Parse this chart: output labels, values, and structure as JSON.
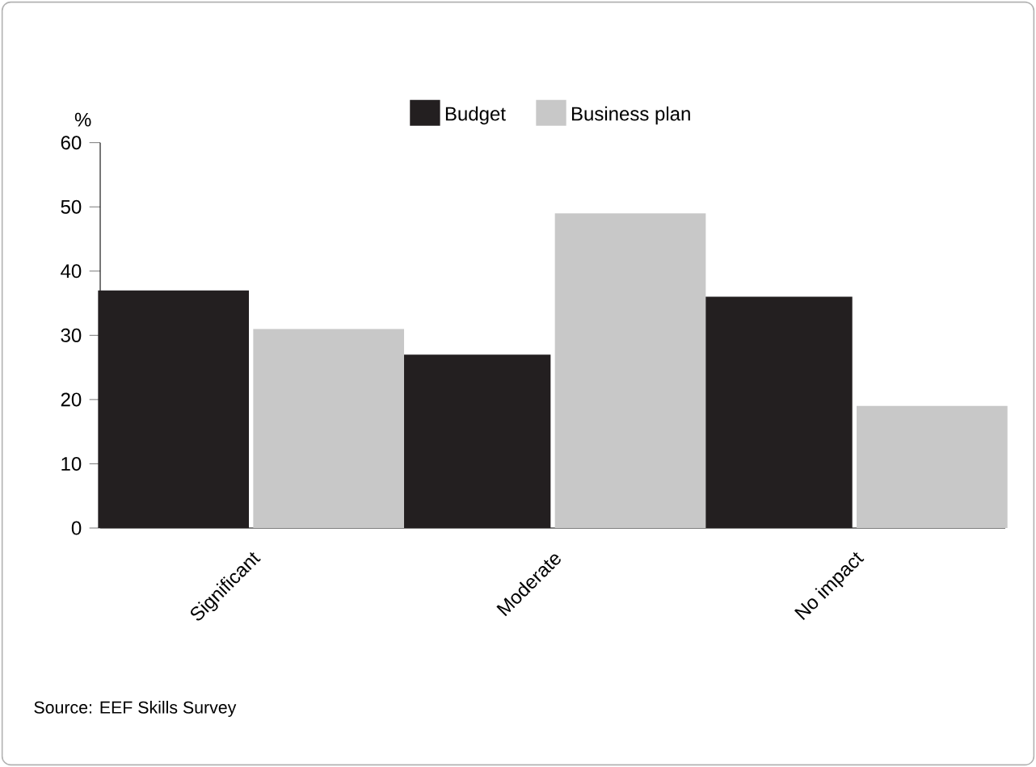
{
  "chart_data": {
    "type": "bar",
    "ylabel": "%",
    "categories": [
      "Significant",
      "Moderate",
      "No impact"
    ],
    "series": [
      {
        "name": "Budget",
        "color": "#231f20",
        "values": [
          37,
          27,
          36
        ]
      },
      {
        "name": "Business plan",
        "color": "#c8c8c8",
        "values": [
          31,
          49,
          19
        ]
      }
    ],
    "ylim": [
      0,
      60
    ],
    "yticks": [
      0,
      10,
      20,
      30,
      40,
      50,
      60
    ],
    "grid": false,
    "legend": "top",
    "annotations": [
      "Source: EEF Skills Survey"
    ]
  }
}
